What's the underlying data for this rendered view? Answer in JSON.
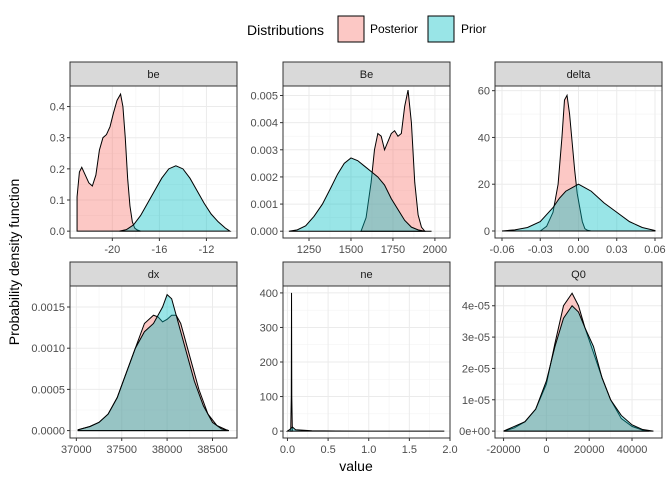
{
  "legend": {
    "title": "Distributions",
    "items": [
      {
        "label": "Posterior",
        "color": "#F8766D"
      },
      {
        "label": "Prior",
        "color": "#00BFC4"
      }
    ]
  },
  "axis": {
    "xlabel": "value",
    "ylabel": "Probability density function"
  },
  "chart_data": [
    {
      "type": "area",
      "title": "be",
      "xlim": [
        -23.6,
        -9.4
      ],
      "ylim": [
        -0.022,
        0.466
      ],
      "xticks": [
        -20,
        -16,
        -12
      ],
      "xtick_labels": [
        "-20",
        "-16",
        "-12"
      ],
      "yticks": [
        0.0,
        0.1,
        0.2,
        0.3,
        0.4
      ],
      "ytick_labels": [
        "0.0",
        "0.1",
        "0.2",
        "0.3",
        "0.4"
      ],
      "series": [
        {
          "name": "Posterior",
          "x": [
            -23.0,
            -22.8,
            -22.6,
            -22.3,
            -22.0,
            -21.7,
            -21.4,
            -21.1,
            -20.8,
            -20.5,
            -20.2,
            -19.9,
            -19.6,
            -19.3,
            -19.1,
            -18.9,
            -18.7,
            -18.5,
            -18.3,
            -18.1,
            -17.9,
            -17.6
          ],
          "y": [
            0.11,
            0.19,
            0.205,
            0.18,
            0.155,
            0.145,
            0.18,
            0.26,
            0.3,
            0.31,
            0.335,
            0.38,
            0.42,
            0.44,
            0.4,
            0.3,
            0.17,
            0.08,
            0.03,
            0.01,
            0.004,
            0.0
          ]
        },
        {
          "name": "Prior",
          "x": [
            -19.4,
            -18.8,
            -18.2,
            -17.6,
            -17.0,
            -16.4,
            -15.8,
            -15.2,
            -14.6,
            -14.0,
            -13.4,
            -12.8,
            -12.2,
            -11.6,
            -11.0,
            -10.4,
            -10.0
          ],
          "y": [
            0.0,
            0.005,
            0.02,
            0.05,
            0.09,
            0.13,
            0.17,
            0.2,
            0.21,
            0.2,
            0.17,
            0.13,
            0.09,
            0.055,
            0.03,
            0.01,
            0.0
          ]
        }
      ]
    },
    {
      "type": "area",
      "title": "Be",
      "xlim": [
        1095,
        2090
      ],
      "ylim": [
        -0.00025,
        0.00535
      ],
      "xticks": [
        1250,
        1500,
        1750,
        2000
      ],
      "xtick_labels": [
        "1250",
        "1500",
        "1750",
        "2000"
      ],
      "yticks": [
        0.0,
        0.001,
        0.002,
        0.003,
        0.004,
        0.005
      ],
      "ytick_labels": [
        "0.000",
        "0.001",
        "0.002",
        "0.003",
        "0.004",
        "0.005"
      ],
      "series": [
        {
          "name": "Posterior",
          "x": [
            1560,
            1590,
            1620,
            1640,
            1660,
            1680,
            1700,
            1720,
            1740,
            1760,
            1780,
            1800,
            1820,
            1840,
            1860,
            1880,
            1900,
            1920,
            1940
          ],
          "y": [
            0.0,
            0.0005,
            0.0018,
            0.003,
            0.0036,
            0.0035,
            0.003,
            0.0033,
            0.0036,
            0.0037,
            0.0035,
            0.0036,
            0.0046,
            0.0052,
            0.004,
            0.0018,
            0.0006,
            0.00015,
            0.0
          ]
        },
        {
          "name": "Prior",
          "x": [
            1130,
            1180,
            1230,
            1280,
            1330,
            1380,
            1420,
            1460,
            1500,
            1540,
            1580,
            1620,
            1660,
            1700,
            1740,
            1780,
            1820,
            1860,
            1900,
            1940,
            1980
          ],
          "y": [
            0.0,
            5e-05,
            0.0002,
            0.00055,
            0.001,
            0.0016,
            0.0021,
            0.0025,
            0.0027,
            0.0026,
            0.0024,
            0.0022,
            0.002,
            0.0017,
            0.0012,
            0.0008,
            0.0004,
            0.00015,
            5e-05,
            0.0,
            0.0
          ]
        }
      ]
    },
    {
      "type": "area",
      "title": "delta",
      "xlim": [
        -0.0655,
        0.0655
      ],
      "ylim": [
        -3.0,
        62.0
      ],
      "xticks": [
        -0.06,
        -0.03,
        0.0,
        0.03,
        0.06
      ],
      "xtick_labels": [
        "-0.06",
        "-0.03",
        "0.00",
        "0.03",
        "0.06"
      ],
      "yticks": [
        0,
        20,
        40,
        60
      ],
      "ytick_labels": [
        "0",
        "20",
        "40",
        "60"
      ],
      "series": [
        {
          "name": "Posterior",
          "x": [
            -0.03,
            -0.025,
            -0.02,
            -0.016,
            -0.013,
            -0.011,
            -0.009,
            -0.007,
            -0.005,
            -0.003,
            -0.001,
            0.001,
            0.003,
            0.005,
            0.007,
            0.01
          ],
          "y": [
            0,
            2,
            8,
            20,
            40,
            56,
            58,
            50,
            38,
            26,
            16,
            10,
            4,
            1,
            0.3,
            0
          ]
        },
        {
          "name": "Prior",
          "x": [
            -0.06,
            -0.05,
            -0.04,
            -0.03,
            -0.02,
            -0.015,
            -0.01,
            -0.005,
            0.0,
            0.005,
            0.01,
            0.02,
            0.03,
            0.04,
            0.05,
            0.06
          ],
          "y": [
            0,
            0.5,
            1.5,
            4,
            10,
            14,
            17,
            18.5,
            20,
            18.5,
            17,
            12,
            8,
            4,
            1.5,
            0.2
          ]
        }
      ]
    },
    {
      "type": "area",
      "title": "dx",
      "xlim": [
        36930,
        38770
      ],
      "ylim": [
        -9e-05,
        0.001755
      ],
      "xticks": [
        37000,
        37500,
        38000,
        38500
      ],
      "xtick_labels": [
        "37000",
        "37500",
        "38000",
        "38500"
      ],
      "yticks": [
        0.0,
        0.0005,
        0.001,
        0.0015
      ],
      "ytick_labels": [
        "0.0000",
        "0.0005",
        "0.0010",
        "0.0015"
      ],
      "series": [
        {
          "name": "Posterior",
          "x": [
            37020,
            37150,
            37250,
            37350,
            37450,
            37550,
            37650,
            37750,
            37850,
            37900,
            37950,
            38000,
            38050,
            38100,
            38150,
            38250,
            38350,
            38450,
            38550,
            38650,
            38680
          ],
          "y": [
            1e-05,
            5e-05,
            0.0001,
            0.0002,
            0.0004,
            0.0007,
            0.001,
            0.0013,
            0.0014,
            0.00138,
            0.00132,
            0.00135,
            0.0014,
            0.0014,
            0.0013,
            0.0009,
            0.0005,
            0.0002,
            6e-05,
            1e-05,
            0.0
          ]
        },
        {
          "name": "Prior",
          "x": [
            37020,
            37150,
            37250,
            37350,
            37450,
            37550,
            37650,
            37750,
            37850,
            37950,
            38000,
            38050,
            38100,
            38200,
            38300,
            38400,
            38500,
            38600,
            38680
          ],
          "y": [
            1e-05,
            5e-05,
            0.0001,
            0.0002,
            0.0004,
            0.0007,
            0.001,
            0.0012,
            0.0013,
            0.0015,
            0.00165,
            0.0016,
            0.0014,
            0.001,
            0.0006,
            0.0003,
            0.0001,
            2e-05,
            0.0
          ]
        }
      ]
    },
    {
      "type": "area",
      "title": "ne",
      "xlim": [
        -0.055,
        2.0
      ],
      "ylim": [
        -20.0,
        420.0
      ],
      "xticks": [
        0.0,
        0.5,
        1.0,
        1.5,
        2.0
      ],
      "xtick_labels": [
        "0.0",
        "0.5",
        "1.0",
        "1.5",
        "2.0"
      ],
      "yticks": [
        0,
        100,
        200,
        300,
        400
      ],
      "ytick_labels": [
        "0",
        "100",
        "200",
        "300",
        "400"
      ],
      "series": [
        {
          "name": "Posterior",
          "x": [
            0.04,
            0.047,
            0.05,
            0.053,
            0.06
          ],
          "y": [
            0,
            100,
            400,
            100,
            0
          ]
        },
        {
          "name": "Prior",
          "x": [
            0.0,
            0.03,
            0.06,
            0.1,
            0.3,
            0.6,
            1.0,
            1.5,
            1.93
          ],
          "y": [
            0,
            5,
            12,
            4,
            1,
            0.3,
            0.05,
            0.01,
            0
          ]
        }
      ]
    },
    {
      "type": "area",
      "title": "Q0",
      "xlim": [
        -24000,
        54000
      ],
      "ylim": [
        -2.2e-06,
        4.63e-05
      ],
      "xticks": [
        -20000,
        0,
        20000,
        40000
      ],
      "xtick_labels": [
        "-20000",
        "0",
        "20000",
        "40000"
      ],
      "yticks": [
        0.0,
        1e-05,
        2e-05,
        3e-05,
        4e-05
      ],
      "ytick_labels": [
        "0e+00",
        "1e-05",
        "2e-05",
        "3e-05",
        "4e-05"
      ],
      "series": [
        {
          "name": "Posterior",
          "x": [
            -20000,
            -15000,
            -10000,
            -5000,
            0,
            4000,
            8000,
            12000,
            15000,
            18000,
            22000,
            26000,
            30000,
            35000,
            40000,
            45000,
            48000
          ],
          "y": [
            0,
            1e-06,
            3e-06,
            7e-06,
            1.5e-05,
            2.8e-05,
            4e-05,
            4.4e-05,
            4e-05,
            3.3e-05,
            2.5e-05,
            1.7e-05,
            1e-05,
            4e-06,
            1.5e-06,
            3e-07,
            0
          ]
        },
        {
          "name": "Prior",
          "x": [
            -20000,
            -15000,
            -10000,
            -5000,
            0,
            4000,
            8000,
            12000,
            15000,
            18000,
            22000,
            26000,
            30000,
            35000,
            40000,
            45000,
            50000
          ],
          "y": [
            0,
            1.5e-06,
            3e-06,
            7e-06,
            1.6e-05,
            2.7e-05,
            3.6e-05,
            4e-05,
            3.8e-05,
            3.3e-05,
            2.7e-05,
            1.7e-05,
            1e-05,
            5e-06,
            2e-06,
            5e-07,
            0
          ]
        }
      ]
    }
  ]
}
